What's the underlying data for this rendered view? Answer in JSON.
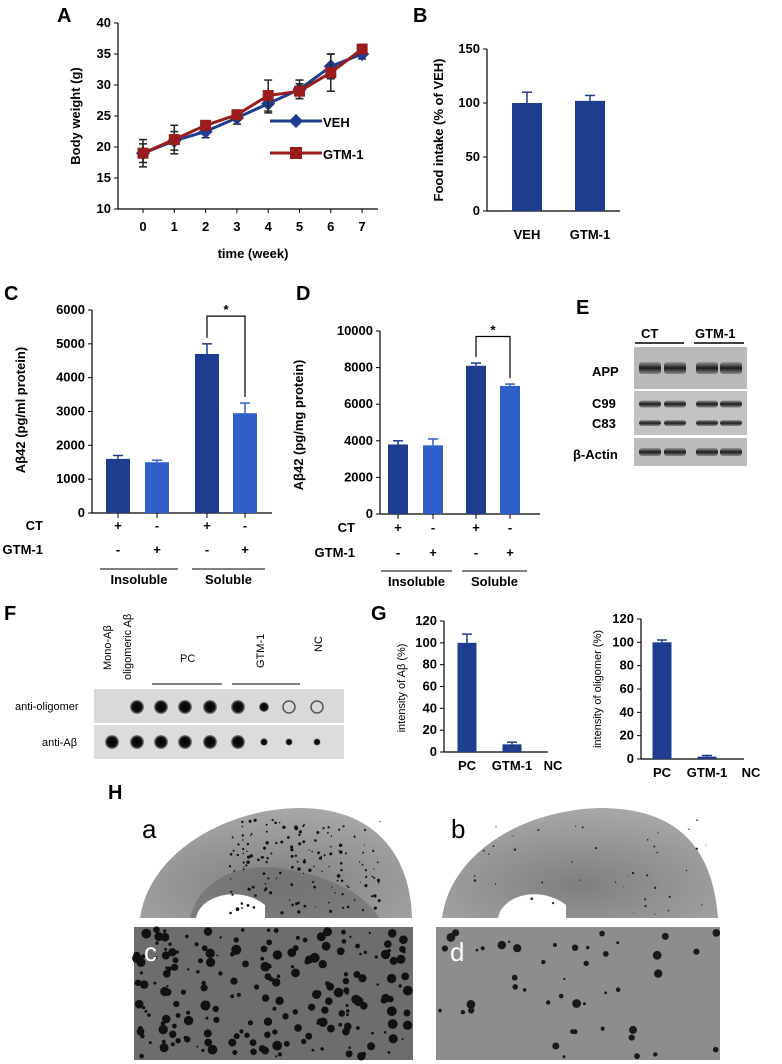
{
  "panels": {
    "a": "A",
    "b": "B",
    "c": "C",
    "d": "D",
    "e": "E",
    "f": "F",
    "g": "G",
    "h": "H"
  },
  "colors": {
    "veh": "#1f3d8f",
    "gtm": "#9b1c1c",
    "bar_dark": "#1f3d8f",
    "bar_light": "#2f5fc8"
  },
  "chart_data": [
    {
      "id": "A",
      "type": "line",
      "xlabel": "time (week)",
      "ylabel": "Body weight (g)",
      "x": [
        0,
        1,
        2,
        3,
        4,
        5,
        6,
        7
      ],
      "ylim": [
        10,
        40
      ],
      "yticks": [
        10,
        15,
        20,
        25,
        30,
        35,
        40
      ],
      "series": [
        {
          "name": "VEH",
          "values": [
            19,
            21,
            22.5,
            24.7,
            27,
            29.3,
            33,
            35
          ],
          "errors": [
            1.5,
            1.5,
            1,
            1,
            1.5,
            1.5,
            2,
            0.8
          ]
        },
        {
          "name": "GTM-1",
          "values": [
            19,
            21.2,
            23.5,
            25.2,
            28.3,
            29,
            32,
            35.8
          ],
          "errors": [
            2.2,
            2.3,
            0.6,
            0.6,
            2.5,
            1.2,
            3,
            0.5
          ]
        }
      ]
    },
    {
      "id": "B",
      "type": "bar",
      "ylabel": "Food intake (% of VEH)",
      "categories": [
        "VEH",
        "GTM-1"
      ],
      "values": [
        100,
        102
      ],
      "errors": [
        10,
        5
      ],
      "ylim": [
        0,
        150
      ],
      "yticks": [
        0,
        50,
        100,
        150
      ]
    },
    {
      "id": "C",
      "type": "bar",
      "ylabel": "Aβ42 (pg/ml protein)",
      "values": [
        1600,
        1500,
        4700,
        2950
      ],
      "errors": [
        100,
        60,
        300,
        300
      ],
      "ylim": [
        0,
        6000
      ],
      "yticks": [
        0,
        1000,
        2000,
        3000,
        4000,
        5000,
        6000
      ],
      "rows": [
        {
          "label": "CT",
          "signs": [
            "+",
            "-",
            "+",
            "-"
          ]
        },
        {
          "label": "GTM-1",
          "signs": [
            "-",
            "+",
            "-",
            "+"
          ]
        }
      ],
      "groups": [
        "Insoluble",
        "Soluble"
      ],
      "annotation": "*"
    },
    {
      "id": "D",
      "type": "bar",
      "ylabel": "Aβ42 (pg/mg protein)",
      "values": [
        3800,
        3750,
        8100,
        7000
      ],
      "errors": [
        200,
        350,
        150,
        100
      ],
      "ylim": [
        0,
        10000
      ],
      "yticks": [
        0,
        2000,
        4000,
        6000,
        8000,
        10000
      ],
      "rows": [
        {
          "label": "CT",
          "signs": [
            "+",
            "-",
            "+",
            "-"
          ]
        },
        {
          "label": "GTM-1",
          "signs": [
            "-",
            "+",
            "-",
            "+"
          ]
        }
      ],
      "groups": [
        "Insoluble",
        "Soluble"
      ],
      "annotation": "*"
    },
    {
      "id": "G1",
      "type": "bar",
      "ylabel": "intensity of Aβ (%)",
      "categories": [
        "PC",
        "GTM-1",
        "NC"
      ],
      "values": [
        100,
        7,
        0
      ],
      "errors": [
        8,
        2,
        0
      ],
      "ylim": [
        0,
        120
      ],
      "yticks": [
        0,
        20,
        40,
        60,
        80,
        100,
        120
      ]
    },
    {
      "id": "G2",
      "type": "bar",
      "ylabel": "intensity of oligomer (%)",
      "categories": [
        "PC",
        "GTM-1",
        "NC"
      ],
      "values": [
        100,
        2,
        0
      ],
      "errors": [
        2,
        1,
        0
      ],
      "ylim": [
        0,
        120
      ],
      "yticks": [
        0,
        20,
        40,
        60,
        80,
        100,
        120
      ]
    }
  ],
  "blot_e": {
    "groups": [
      "CT",
      "GTM-1"
    ],
    "rows": [
      "APP",
      "C99",
      "C83",
      "β-Actin"
    ]
  },
  "dot_f": {
    "columns": [
      "Mono-Aβ",
      "oligomeric Aβ",
      "PC",
      "GTM-1",
      "NC"
    ],
    "rows": [
      "anti-oligomer",
      "anti-Aβ"
    ],
    "oligomer_dots": [
      0,
      1,
      1,
      1,
      1,
      1,
      0.6,
      0.25,
      0.2,
      0
    ],
    "abeta_dots": [
      1,
      1,
      1,
      1,
      1,
      1,
      0.35,
      0.3,
      0.3,
      0
    ]
  },
  "histology": {
    "labels": [
      "a",
      "b",
      "c",
      "d"
    ]
  }
}
